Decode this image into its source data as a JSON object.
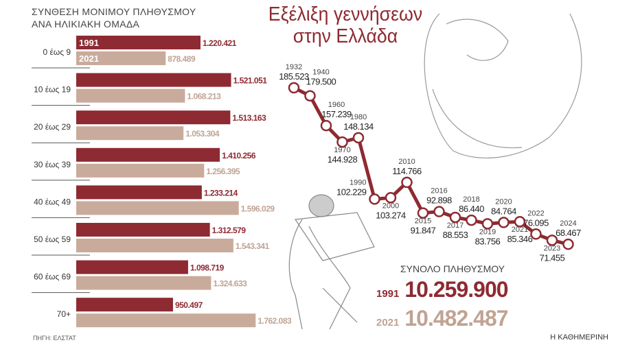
{
  "title": "Εξέλιξη γεννήσεων στην Ελλάδα",
  "title_lines": [
    "Εξέλιξη γεννήσεων",
    "στην Ελλάδα"
  ],
  "source": "ΠΗΓΗ: ΕΛΣΤΑΤ",
  "brand": "Η ΚΑΘΗΜΕΡΙΝΗ",
  "totals": {
    "title": "ΣΥΝΟΛΟ ΠΛΗΘΥΣΜΟΥ",
    "rows": [
      {
        "year": "1991",
        "value": "10.259.900"
      },
      {
        "year": "2021",
        "value": "10.482.487"
      }
    ]
  },
  "colors": {
    "y1991": "#8e2a31",
    "y2021": "#c9ab9c",
    "line": "#8e2a31"
  },
  "chart_data": [
    {
      "type": "bar",
      "orientation": "horizontal",
      "title": "ΣΥΝΘΕΣΗ ΜΟΝΙΜΟΥ ΠΛΗΘΥΣΜΟΥ ΑΝΑ ΗΛΙΚΙΑΚΗ ΟΜΑΔΑ",
      "title_lines": [
        "ΣΥΝΘΕΣΗ ΜΟΝΙΜΟΥ ΠΛΗΘΥΣΜΟΥ",
        "ΑΝΑ ΗΛΙΚΙΑΚΗ ΟΜΑΔΑ"
      ],
      "categories": [
        "0 έως 9",
        "10 έως 19",
        "20 έως 29",
        "30 έως 39",
        "40 έως 49",
        "50 έως 59",
        "60 έως 69",
        "70+"
      ],
      "series": [
        {
          "name": "1991",
          "values": [
            1220421,
            1521051,
            1513163,
            1410256,
            1233214,
            1312579,
            1098719,
            950497
          ],
          "labels": [
            "1.220.421",
            "1.521.051",
            "1.513.163",
            "1.410.256",
            "1.233.214",
            "1.312.579",
            "1.098.719",
            "950.497"
          ]
        },
        {
          "name": "2021",
          "values": [
            878489,
            1068213,
            1053304,
            1256395,
            1596029,
            1543341,
            1324633,
            1762083
          ],
          "labels": [
            "878.489",
            "1.068.213",
            "1.053.304",
            "1.256.395",
            "1.596.029",
            "1.543.341",
            "1.324.633",
            "1.762.083"
          ]
        }
      ],
      "legend": "inside-first-bars"
    },
    {
      "type": "line",
      "title": "Εξέλιξη γεννήσεων στην Ελλάδα",
      "x": [
        "1932",
        "1940",
        "1960",
        "1970",
        "1980",
        "1990",
        "2000",
        "2010",
        "2015",
        "2016",
        "2017",
        "2018",
        "2019",
        "2020",
        "2021",
        "2022",
        "2023",
        "2024"
      ],
      "y": [
        185523,
        179500,
        157239,
        144928,
        148134,
        102229,
        103274,
        114766,
        91847,
        92898,
        88553,
        86440,
        83756,
        84764,
        85346,
        76095,
        71455,
        68467
      ],
      "labels": [
        "185.523",
        "179.500",
        "157.239",
        "144.928",
        "148.134",
        "102.229",
        "103.274",
        "114.766",
        "91.847",
        "92.898",
        "88.553",
        "86.440",
        "83.756",
        "84.764",
        "85.346",
        "76.095",
        "71.455",
        "68.467"
      ],
      "label_position": [
        "above",
        "above",
        "above",
        "below",
        "above",
        "left",
        "below",
        "above",
        "below",
        "above",
        "below",
        "above",
        "below",
        "above",
        "below",
        "above",
        "below",
        "above"
      ]
    }
  ]
}
